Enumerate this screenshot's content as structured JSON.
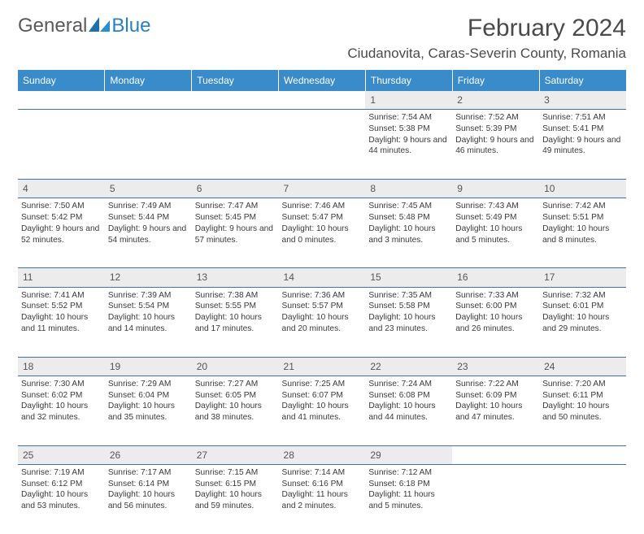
{
  "brand": {
    "part1": "General",
    "part2": "Blue"
  },
  "title": "February 2024",
  "location": "Ciudanovita, Caras-Severin County, Romania",
  "colors": {
    "header_bg": "#3a8bc9",
    "row_border": "#3a74a8",
    "daynum_bg": "#ececec",
    "text": "#3a3a3a",
    "logo_gray": "#5a5a5a",
    "logo_blue": "#2a7fbf"
  },
  "weekdays": [
    "Sunday",
    "Monday",
    "Tuesday",
    "Wednesday",
    "Thursday",
    "Friday",
    "Saturday"
  ],
  "weeks": [
    {
      "nums": [
        "",
        "",
        "",
        "",
        "1",
        "2",
        "3"
      ],
      "cells": [
        "",
        "",
        "",
        "",
        "Sunrise: 7:54 AM\nSunset: 5:38 PM\nDaylight: 9 hours and 44 minutes.",
        "Sunrise: 7:52 AM\nSunset: 5:39 PM\nDaylight: 9 hours and 46 minutes.",
        "Sunrise: 7:51 AM\nSunset: 5:41 PM\nDaylight: 9 hours and 49 minutes."
      ]
    },
    {
      "nums": [
        "4",
        "5",
        "6",
        "7",
        "8",
        "9",
        "10"
      ],
      "cells": [
        "Sunrise: 7:50 AM\nSunset: 5:42 PM\nDaylight: 9 hours and 52 minutes.",
        "Sunrise: 7:49 AM\nSunset: 5:44 PM\nDaylight: 9 hours and 54 minutes.",
        "Sunrise: 7:47 AM\nSunset: 5:45 PM\nDaylight: 9 hours and 57 minutes.",
        "Sunrise: 7:46 AM\nSunset: 5:47 PM\nDaylight: 10 hours and 0 minutes.",
        "Sunrise: 7:45 AM\nSunset: 5:48 PM\nDaylight: 10 hours and 3 minutes.",
        "Sunrise: 7:43 AM\nSunset: 5:49 PM\nDaylight: 10 hours and 5 minutes.",
        "Sunrise: 7:42 AM\nSunset: 5:51 PM\nDaylight: 10 hours and 8 minutes."
      ]
    },
    {
      "nums": [
        "11",
        "12",
        "13",
        "14",
        "15",
        "16",
        "17"
      ],
      "cells": [
        "Sunrise: 7:41 AM\nSunset: 5:52 PM\nDaylight: 10 hours and 11 minutes.",
        "Sunrise: 7:39 AM\nSunset: 5:54 PM\nDaylight: 10 hours and 14 minutes.",
        "Sunrise: 7:38 AM\nSunset: 5:55 PM\nDaylight: 10 hours and 17 minutes.",
        "Sunrise: 7:36 AM\nSunset: 5:57 PM\nDaylight: 10 hours and 20 minutes.",
        "Sunrise: 7:35 AM\nSunset: 5:58 PM\nDaylight: 10 hours and 23 minutes.",
        "Sunrise: 7:33 AM\nSunset: 6:00 PM\nDaylight: 10 hours and 26 minutes.",
        "Sunrise: 7:32 AM\nSunset: 6:01 PM\nDaylight: 10 hours and 29 minutes."
      ]
    },
    {
      "nums": [
        "18",
        "19",
        "20",
        "21",
        "22",
        "23",
        "24"
      ],
      "cells": [
        "Sunrise: 7:30 AM\nSunset: 6:02 PM\nDaylight: 10 hours and 32 minutes.",
        "Sunrise: 7:29 AM\nSunset: 6:04 PM\nDaylight: 10 hours and 35 minutes.",
        "Sunrise: 7:27 AM\nSunset: 6:05 PM\nDaylight: 10 hours and 38 minutes.",
        "Sunrise: 7:25 AM\nSunset: 6:07 PM\nDaylight: 10 hours and 41 minutes.",
        "Sunrise: 7:24 AM\nSunset: 6:08 PM\nDaylight: 10 hours and 44 minutes.",
        "Sunrise: 7:22 AM\nSunset: 6:09 PM\nDaylight: 10 hours and 47 minutes.",
        "Sunrise: 7:20 AM\nSunset: 6:11 PM\nDaylight: 10 hours and 50 minutes."
      ]
    },
    {
      "nums": [
        "25",
        "26",
        "27",
        "28",
        "29",
        "",
        ""
      ],
      "cells": [
        "Sunrise: 7:19 AM\nSunset: 6:12 PM\nDaylight: 10 hours and 53 minutes.",
        "Sunrise: 7:17 AM\nSunset: 6:14 PM\nDaylight: 10 hours and 56 minutes.",
        "Sunrise: 7:15 AM\nSunset: 6:15 PM\nDaylight: 10 hours and 59 minutes.",
        "Sunrise: 7:14 AM\nSunset: 6:16 PM\nDaylight: 11 hours and 2 minutes.",
        "Sunrise: 7:12 AM\nSunset: 6:18 PM\nDaylight: 11 hours and 5 minutes.",
        "",
        ""
      ]
    }
  ]
}
